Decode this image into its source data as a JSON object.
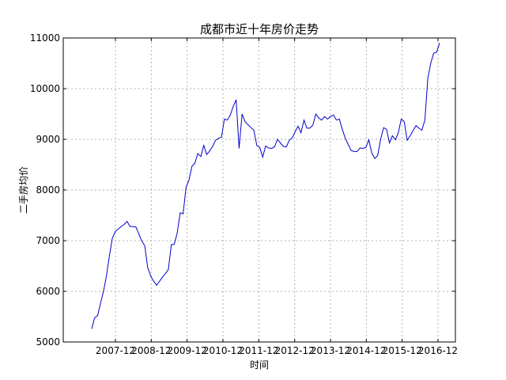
{
  "chart_data": {
    "type": "line",
    "title": "成都市近十年房价走势",
    "xlabel": "时间",
    "ylabel": "二手房均价",
    "ylim": [
      5000,
      11000
    ],
    "yticks": [
      5000,
      6000,
      7000,
      8000,
      9000,
      10000,
      11000
    ],
    "xticks": [
      "2007-12",
      "2008-12",
      "2009-12",
      "2010-12",
      "2011-12",
      "2012-12",
      "2013-12",
      "2014-12",
      "2015-12",
      "2016-12"
    ],
    "grid": true,
    "line_color": "#0000cc",
    "series": [
      {
        "values": [
          5260,
          5480,
          5520,
          5770,
          6000,
          6300,
          6700,
          7050,
          7180,
          7230,
          7280,
          7320,
          7380,
          7280,
          7280,
          7270,
          7130,
          6990,
          6900,
          6470,
          6300,
          6200,
          6120,
          6200,
          6280,
          6350,
          6430,
          6920,
          6930,
          7150,
          7550,
          7530,
          8050,
          8200,
          8470,
          8530,
          8720,
          8660,
          8880,
          8700,
          8770,
          8860,
          8980,
          9020,
          9040,
          9400,
          9380,
          9480,
          9650,
          9780,
          8820,
          9500,
          9350,
          9290,
          9230,
          9180,
          8880,
          8840,
          8650,
          8870,
          8830,
          8820,
          8850,
          9000,
          8930,
          8860,
          8850,
          8980,
          9030,
          9150,
          9260,
          9130,
          9380,
          9220,
          9220,
          9280,
          9500,
          9420,
          9380,
          9450,
          9400,
          9450,
          9480,
          9380,
          9400,
          9200,
          9020,
          8900,
          8780,
          8760,
          8760,
          8830,
          8820,
          8840,
          8990,
          8730,
          8620,
          8680,
          9000,
          9230,
          9200,
          8930,
          9070,
          8990,
          9130,
          9400,
          9350,
          8980,
          9070,
          9170,
          9270,
          9220,
          9180,
          9380,
          10200,
          10500,
          10700,
          10720,
          10900
        ]
      }
    ]
  }
}
